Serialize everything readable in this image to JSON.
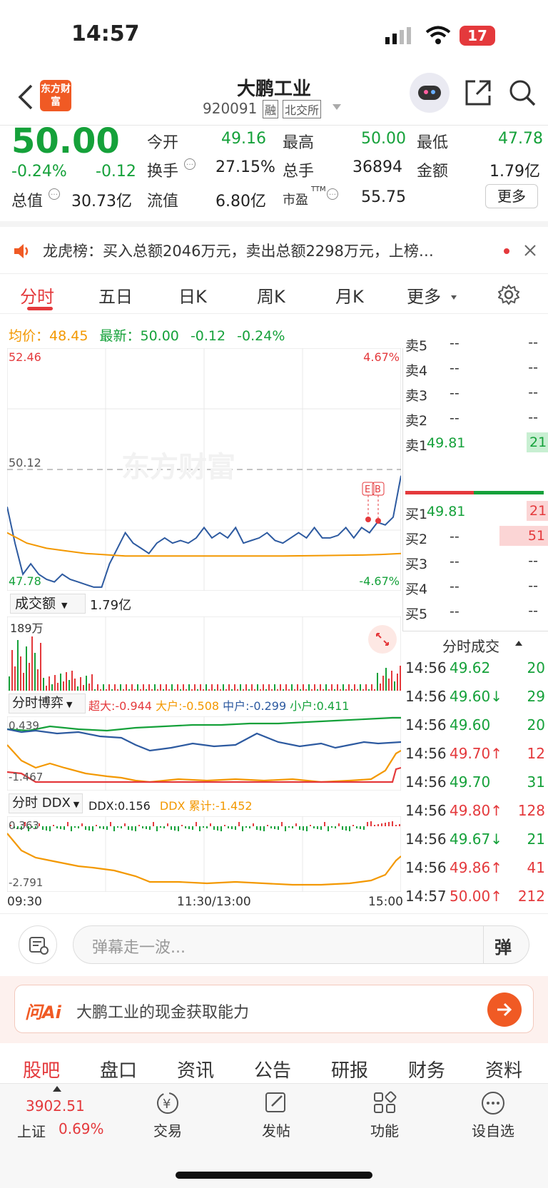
{
  "status": {
    "time": "14:57",
    "battery": "17"
  },
  "header": {
    "title": "大鹏工业",
    "code": "920091",
    "badge_margin": "融",
    "badge_exchange": "北交所",
    "logo_text": "东方财富"
  },
  "quote": {
    "price": "50.00",
    "change_pct": "-0.24%",
    "change": "-0.12",
    "open_label": "今开",
    "open": "49.16",
    "high_label": "最高",
    "high": "50.00",
    "low_label": "最低",
    "low": "47.78",
    "turnover_label": "换手",
    "turnover": "27.15%",
    "volume_label": "总手",
    "volume": "36894",
    "amount_label": "金额",
    "amount": "1.79亿",
    "mktcap_label": "总值",
    "mktcap": "30.73亿",
    "float_label": "流值",
    "float": "6.80亿",
    "pe_label": "市盈",
    "pe_sup": "TTM",
    "pe": "55.75",
    "more": "更多"
  },
  "notice": {
    "text": "龙虎榜：买入总额2046万元，卖出总额2298万元，上榜…"
  },
  "tabs": [
    "分时",
    "五日",
    "日K",
    "周K",
    "月K",
    "更多"
  ],
  "info_line": {
    "avg_label": "均价：",
    "avg": "48.45",
    "latest_label": "最新：",
    "latest": "50.00",
    "chg": "-0.12",
    "pct": "-0.24%"
  },
  "chart_data": [
    {
      "type": "line",
      "title": "",
      "y_left_ticks": [
        "52.46",
        "50.12",
        "47.78"
      ],
      "y_right_ticks": [
        "4.67%",
        "-4.67%"
      ],
      "ylim": [
        47.78,
        52.46
      ],
      "prev_close": 50.12,
      "x_labels": [
        "09:30",
        "11:30/13:00",
        "15:00"
      ],
      "series": [
        {
          "name": "",
          "color": "#2d5aa0",
          "x": [
            0,
            0.02,
            0.04,
            0.06,
            0.08,
            0.1,
            0.12,
            0.14,
            0.16,
            0.18,
            0.2,
            0.22,
            0.24,
            0.26,
            0.28,
            0.3,
            0.32,
            0.34,
            0.36,
            0.38,
            0.4,
            0.42,
            0.44,
            0.46,
            0.48,
            0.5,
            0.52,
            0.54,
            0.56,
            0.58,
            0.6,
            0.62,
            0.64,
            0.66,
            0.68,
            0.7,
            0.72,
            0.74,
            0.76,
            0.78,
            0.8,
            0.82,
            0.84,
            0.86,
            0.88,
            0.9,
            0.92,
            0.94,
            0.96,
            0.98,
            1.0
          ],
          "values": [
            49.4,
            48.7,
            48.1,
            48.3,
            48.1,
            48.0,
            47.95,
            48.1,
            48.0,
            47.95,
            47.9,
            47.85,
            47.85,
            48.3,
            48.6,
            48.9,
            48.7,
            48.6,
            48.5,
            48.7,
            48.8,
            48.7,
            48.75,
            48.7,
            48.8,
            49.0,
            48.8,
            48.9,
            48.8,
            49.0,
            48.7,
            48.75,
            48.8,
            48.9,
            48.75,
            48.7,
            48.8,
            48.9,
            48.8,
            49.0,
            48.8,
            48.8,
            48.85,
            49.0,
            48.8,
            49.0,
            48.9,
            49.1,
            49.05,
            49.2,
            50.0
          ]
        },
        {
          "name": "",
          "color": "#f39800",
          "x": [
            0,
            0.05,
            0.1,
            0.15,
            0.2,
            0.3,
            0.4,
            0.5,
            0.6,
            0.7,
            0.8,
            0.9,
            0.95,
            1.0
          ],
          "values": [
            48.9,
            48.7,
            48.6,
            48.55,
            48.5,
            48.45,
            48.45,
            48.45,
            48.45,
            48.45,
            48.46,
            48.47,
            48.48,
            48.5
          ]
        }
      ]
    },
    {
      "type": "bar",
      "title": "成交额",
      "value_label": "1.79亿",
      "ymax_label": "189万"
    },
    {
      "type": "line",
      "title": "分时博弈",
      "legend": [
        {
          "name": "超大:",
          "value": "-0.944",
          "color": "#e4393c"
        },
        {
          "name": "大户:",
          "value": "-0.508",
          "color": "#f39800"
        },
        {
          "name": "中户:",
          "value": "-0.299",
          "color": "#2d5aa0"
        },
        {
          "name": "小户:",
          "value": "0.411",
          "color": "#15a13a"
        }
      ],
      "y_ticks": [
        "0.439",
        "-1.467"
      ]
    },
    {
      "type": "line",
      "title": "分时 DDX",
      "legend": [
        {
          "name": "DDX:",
          "value": "0.156",
          "color": "#333"
        },
        {
          "name": "DDX 累计:",
          "value": "-1.452",
          "color": "#f39800"
        }
      ],
      "y_ticks": [
        "0.363",
        "-2.791"
      ]
    }
  ],
  "orderbook": {
    "sell": [
      {
        "label": "卖5",
        "price": "--",
        "vol": "--"
      },
      {
        "label": "卖4",
        "price": "--",
        "vol": "--"
      },
      {
        "label": "卖3",
        "price": "--",
        "vol": "--"
      },
      {
        "label": "卖2",
        "price": "--",
        "vol": "--"
      },
      {
        "label": "卖1",
        "price": "49.81",
        "vol": "21"
      }
    ],
    "buy": [
      {
        "label": "买1",
        "price": "49.81",
        "vol": "21"
      },
      {
        "label": "买2",
        "price": "--",
        "vol": "51"
      },
      {
        "label": "买3",
        "price": "--",
        "vol": "--"
      },
      {
        "label": "买4",
        "price": "--",
        "vol": "--"
      },
      {
        "label": "买5",
        "price": "--",
        "vol": "--"
      }
    ]
  },
  "ticks_title": "分时成交",
  "ticks": [
    {
      "time": "14:56",
      "price": "49.62",
      "arrow": "",
      "vol": "20",
      "color": "green"
    },
    {
      "time": "14:56",
      "price": "49.60",
      "arrow": "↓",
      "vol": "29",
      "color": "green"
    },
    {
      "time": "14:56",
      "price": "49.60",
      "arrow": "",
      "vol": "20",
      "color": "green"
    },
    {
      "time": "14:56",
      "price": "49.70",
      "arrow": "↑",
      "vol": "12",
      "color": "red"
    },
    {
      "time": "14:56",
      "price": "49.70",
      "arrow": "",
      "vol": "31",
      "color": "green"
    },
    {
      "time": "14:56",
      "price": "49.80",
      "arrow": "↑",
      "vol": "128",
      "color": "red"
    },
    {
      "time": "14:56",
      "price": "49.67",
      "arrow": "↓",
      "vol": "21",
      "color": "green"
    },
    {
      "time": "14:56",
      "price": "49.86",
      "arrow": "↑",
      "vol": "41",
      "color": "red"
    },
    {
      "time": "14:57",
      "price": "50.00",
      "arrow": "↑",
      "vol": "212",
      "color": "red"
    }
  ],
  "comment": {
    "placeholder": "弹幕走一波...",
    "danmu_btn": "弹"
  },
  "ai": {
    "brand": "问Ai",
    "prompt": "大鹏工业的现金获取能力"
  },
  "bottom_tabs": [
    "股吧",
    "盘口",
    "资讯",
    "公告",
    "研报",
    "财务",
    "资料"
  ],
  "nav": {
    "index_value": "3902.51",
    "index_name": "上证",
    "index_pct": "0.69%",
    "trade": "交易",
    "post": "发帖",
    "func": "功能",
    "watch": "设自选"
  }
}
